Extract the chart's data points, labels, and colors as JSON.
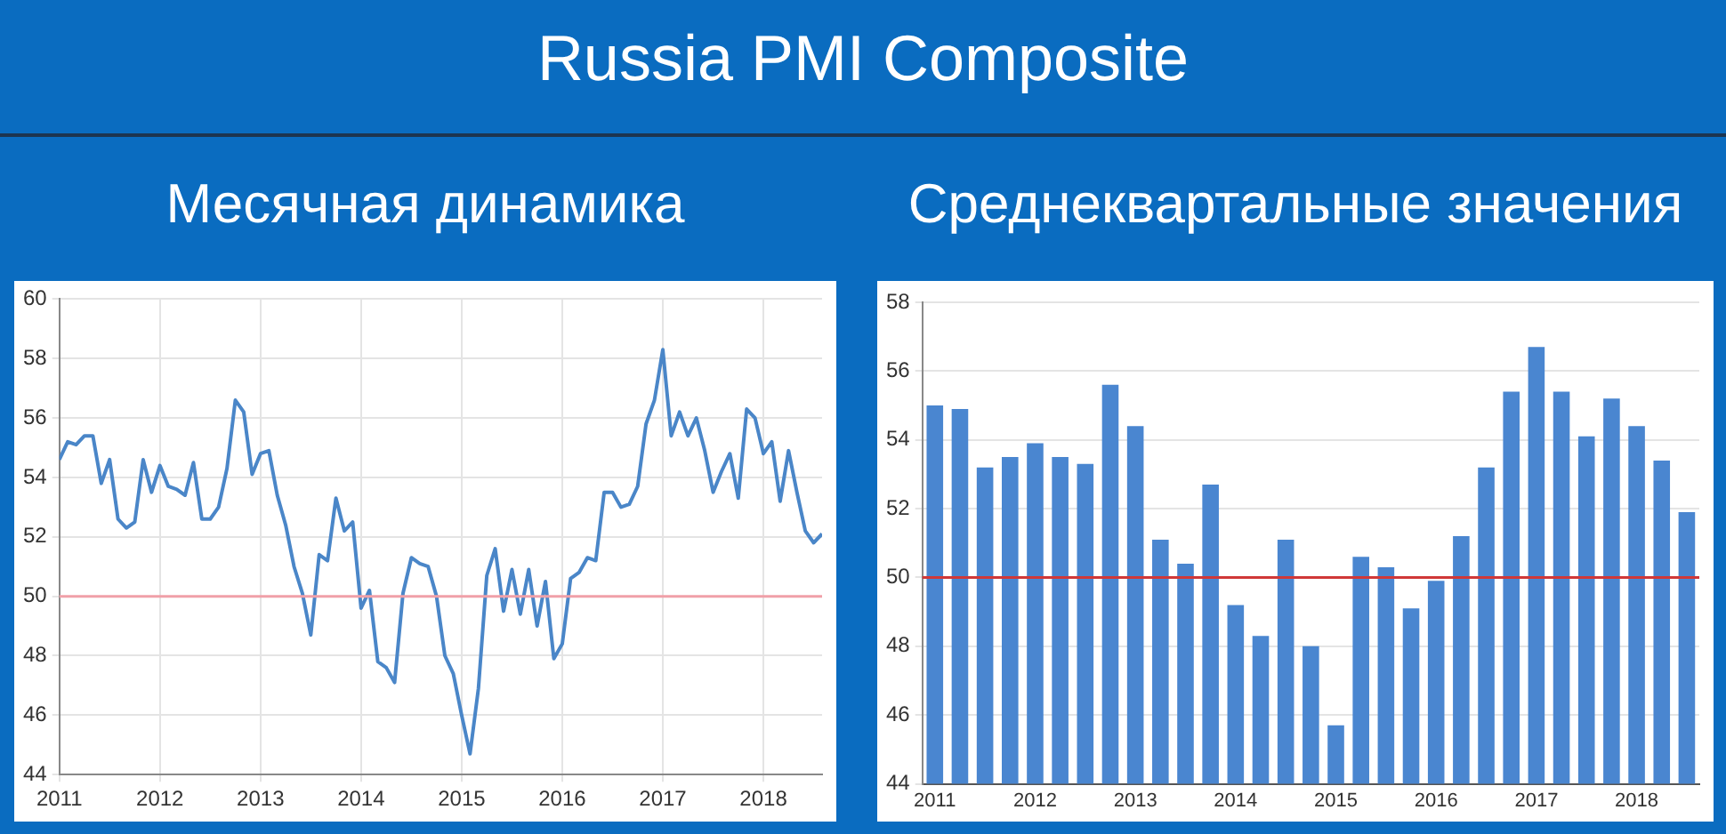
{
  "chart_data": [
    {
      "type": "line",
      "title": "Russia PMI Composite",
      "subtitle": "Месячная динамика",
      "x": [
        "2011-01",
        "2011-02",
        "2011-03",
        "2011-04",
        "2011-05",
        "2011-06",
        "2011-07",
        "2011-08",
        "2011-09",
        "2011-10",
        "2011-11",
        "2011-12",
        "2012-01",
        "2012-02",
        "2012-03",
        "2012-04",
        "2012-05",
        "2012-06",
        "2012-07",
        "2012-08",
        "2012-09",
        "2012-10",
        "2012-11",
        "2012-12",
        "2013-01",
        "2013-02",
        "2013-03",
        "2013-04",
        "2013-05",
        "2013-06",
        "2013-07",
        "2013-08",
        "2013-09",
        "2013-10",
        "2013-11",
        "2013-12",
        "2014-01",
        "2014-02",
        "2014-03",
        "2014-04",
        "2014-05",
        "2014-06",
        "2014-07",
        "2014-08",
        "2014-09",
        "2014-10",
        "2014-11",
        "2014-12",
        "2015-01",
        "2015-02",
        "2015-03",
        "2015-04",
        "2015-05",
        "2015-06",
        "2015-07",
        "2015-08",
        "2015-09",
        "2015-10",
        "2015-11",
        "2015-12",
        "2016-01",
        "2016-02",
        "2016-03",
        "2016-04",
        "2016-05",
        "2016-06",
        "2016-07",
        "2016-08",
        "2016-09",
        "2016-10",
        "2016-11",
        "2016-12",
        "2017-01",
        "2017-02",
        "2017-03",
        "2017-04",
        "2017-05",
        "2017-06",
        "2017-07",
        "2017-08",
        "2017-09",
        "2017-10",
        "2017-11",
        "2017-12",
        "2018-01",
        "2018-02",
        "2018-03",
        "2018-04",
        "2018-05",
        "2018-06",
        "2018-07",
        "2018-08"
      ],
      "series": [
        {
          "color": "#4a86c8",
          "values": [
            54.6,
            55.2,
            55.1,
            55.4,
            55.4,
            53.8,
            54.6,
            52.6,
            52.3,
            52.5,
            54.6,
            53.5,
            54.4,
            53.7,
            53.6,
            53.4,
            54.5,
            52.6,
            52.6,
            53.0,
            54.3,
            56.6,
            56.2,
            54.1,
            54.8,
            54.9,
            53.4,
            52.4,
            51.0,
            50.1,
            48.7,
            51.4,
            51.2,
            53.3,
            52.2,
            52.5,
            49.6,
            50.2,
            47.8,
            47.6,
            47.1,
            50.1,
            51.3,
            51.1,
            51.0,
            50.0,
            48.0,
            47.4,
            46.0,
            44.7,
            46.9,
            50.7,
            51.6,
            49.5,
            50.9,
            49.4,
            50.9,
            49.0,
            50.5,
            47.9,
            48.4,
            50.6,
            50.8,
            51.3,
            51.2,
            53.5,
            53.5,
            53.0,
            53.1,
            53.7,
            55.8,
            56.6,
            58.3,
            55.4,
            56.2,
            55.4,
            56.0,
            54.9,
            53.5,
            54.2,
            54.8,
            53.3,
            56.3,
            56.0,
            54.8,
            55.2,
            53.2,
            54.9,
            53.5,
            52.2,
            51.8,
            52.1
          ]
        }
      ],
      "xlim": [
        "2011-01",
        "2018-08"
      ],
      "xticks": [
        "2011",
        "2012",
        "2013",
        "2014",
        "2015",
        "2016",
        "2017",
        "2018"
      ],
      "ylim": [
        44,
        60
      ],
      "yticks": [
        44,
        46,
        48,
        50,
        52,
        54,
        56,
        58,
        60
      ],
      "grid": true,
      "marker": "none",
      "line_style": "solid",
      "ref_lines": [
        {
          "axis": "y",
          "value": 50,
          "color": "#f0a0a8"
        }
      ]
    },
    {
      "type": "bar",
      "title": "Среднеквартальные значения",
      "categories": [
        "2011",
        null,
        null,
        null,
        "2012",
        null,
        null,
        null,
        "2013",
        null,
        null,
        null,
        "2014",
        null,
        null,
        null,
        "2015",
        null,
        null,
        null,
        "2016",
        null,
        null,
        null,
        "2017",
        null,
        null,
        null,
        "2018",
        null,
        null
      ],
      "series": [
        {
          "color": "#4a86d0",
          "values": [
            55.0,
            54.9,
            53.2,
            53.5,
            53.9,
            53.5,
            53.3,
            55.6,
            54.4,
            51.1,
            50.4,
            52.7,
            49.2,
            48.3,
            51.1,
            48.0,
            45.7,
            50.6,
            50.3,
            49.1,
            49.9,
            51.2,
            53.2,
            55.4,
            56.7,
            55.4,
            54.1,
            55.2,
            54.4,
            53.4,
            51.9
          ]
        }
      ],
      "ylim": [
        44,
        58
      ],
      "yticks": [
        44,
        46,
        48,
        50,
        52,
        54,
        56,
        58
      ],
      "grid": "y",
      "ref_lines": [
        {
          "axis": "y",
          "value": 50,
          "color": "#d03838"
        }
      ]
    }
  ]
}
